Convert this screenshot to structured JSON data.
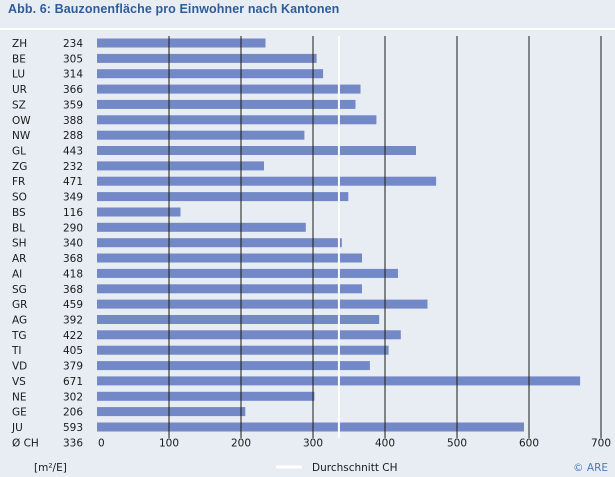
{
  "chart_data": {
    "type": "bar",
    "orientation": "horizontal",
    "title": "Abb. 6: Bauzonenfläche pro Einwohner nach Kantonen",
    "categories": [
      "ZH",
      "BE",
      "LU",
      "UR",
      "SZ",
      "OW",
      "NW",
      "GL",
      "ZG",
      "FR",
      "SO",
      "BS",
      "BL",
      "SH",
      "AR",
      "AI",
      "SG",
      "GR",
      "AG",
      "TG",
      "TI",
      "VD",
      "VS",
      "NE",
      "GE",
      "JU"
    ],
    "values": [
      234,
      305,
      314,
      366,
      359,
      388,
      288,
      443,
      232,
      471,
      349,
      116,
      290,
      340,
      368,
      418,
      368,
      459,
      392,
      422,
      405,
      379,
      671,
      302,
      206,
      593
    ],
    "average": {
      "label": "Ø CH",
      "value": 336,
      "legend": "Durchschnitt CH"
    },
    "unit_label": "[m²/E]",
    "xticks": [
      "0",
      "100",
      "200",
      "300",
      "400",
      "500",
      "600",
      "700"
    ],
    "xlim": [
      0,
      700
    ],
    "grid": true,
    "credit": "© ARE",
    "colors": {
      "bar": "#7388c6",
      "grid": "#1a1a1a",
      "average_line": "#ffffff",
      "background": "#e8edf4",
      "title": "#2d5d9a"
    }
  }
}
